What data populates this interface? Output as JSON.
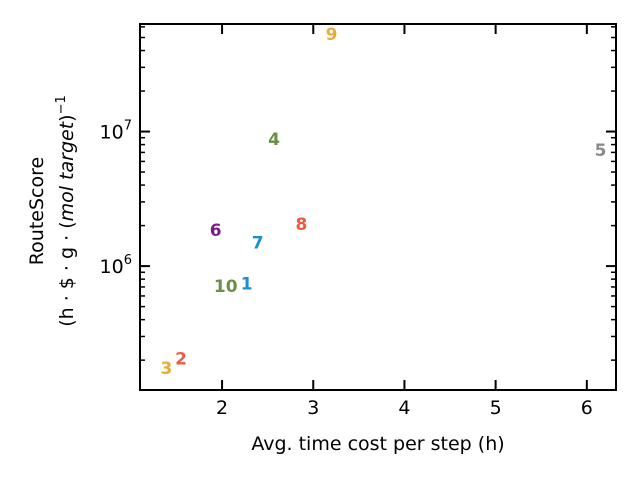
{
  "chart_data": {
    "type": "scatter",
    "title": "",
    "xlabel": "Avg. time cost per step (h)",
    "ylabel_line1": "RouteScore",
    "ylabel_line2_parts": [
      "(h · $ · g · (",
      "mol target",
      ")",
      "−1"
    ],
    "xlim": [
      1.1,
      6.32
    ],
    "ylim": [
      120000,
      63000000
    ],
    "yscale": "log",
    "x_ticks": [
      2,
      3,
      4,
      5,
      6
    ],
    "y_major_ticks": [
      {
        "value": 1000000,
        "base": "10",
        "exp": "6"
      },
      {
        "value": 10000000,
        "base": "10",
        "exp": "7"
      }
    ],
    "grid": false,
    "points": [
      {
        "label": "1",
        "x": 2.27,
        "y": 740000,
        "color": "#1a8fd4"
      },
      {
        "label": "2",
        "x": 1.55,
        "y": 205000,
        "color": "#f05a40"
      },
      {
        "label": "3",
        "x": 1.39,
        "y": 175000,
        "color": "#e8ad35"
      },
      {
        "label": "4",
        "x": 2.57,
        "y": 8800000,
        "color": "#6a8f45"
      },
      {
        "label": "5",
        "x": 6.15,
        "y": 7300000,
        "color": "#8a8a8a"
      },
      {
        "label": "6",
        "x": 1.93,
        "y": 1850000,
        "color": "#7b1a87"
      },
      {
        "label": "7",
        "x": 2.39,
        "y": 1500000,
        "color": "#1a8fd4"
      },
      {
        "label": "8",
        "x": 2.87,
        "y": 2050000,
        "color": "#f05a40"
      },
      {
        "label": "9",
        "x": 3.2,
        "y": 53000000,
        "color": "#e8ad35"
      },
      {
        "label": "10",
        "x": 2.04,
        "y": 710000,
        "color": "#6a8f45"
      }
    ]
  }
}
